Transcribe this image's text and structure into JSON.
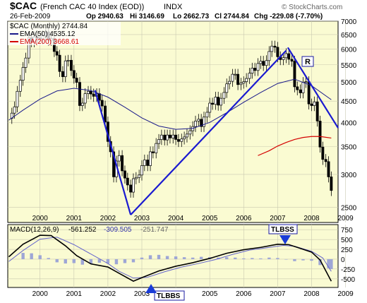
{
  "chart_data": [
    {
      "type": "candlestick",
      "symbol": "$CAC",
      "name": "(French CAC 40 Index (EOD))",
      "exchange": "INDX",
      "date": "26-Feb-2009",
      "ohlc_label": {
        "open": "Op 2940.63",
        "high": "Hi 3146.69",
        "low": "Lo 2662.73",
        "close": "Cl 2744.84",
        "change": "Chg -229.08 (-7.70%)"
      },
      "watermark": "© StockCharts.com",
      "legend": [
        {
          "label": "$CAC (Monthly) 2744.84",
          "color": "#000000"
        },
        {
          "label": "EMA(50) 4535.12",
          "color": "#1a1a8a"
        },
        {
          "label": "EMA(200) 3668.61",
          "color": "#d40000"
        }
      ],
      "ylim": [
        2300,
        7000
      ],
      "y_scale": "log",
      "y_ticks": [
        2500,
        3000,
        3500,
        4000,
        4500,
        5000,
        5500,
        6000,
        6500,
        7000
      ],
      "x_ticks": [
        "2000",
        "2001",
        "2002",
        "2003",
        "2004",
        "2005",
        "2006",
        "2007",
        "2008",
        "2009"
      ],
      "xlim": [
        1999.55,
        2009.28
      ],
      "monthly_close": [
        [
          1999.58,
          4090
        ],
        [
          1999.67,
          4210
        ],
        [
          1999.75,
          4360
        ],
        [
          1999.83,
          4750
        ],
        [
          1999.92,
          5050
        ],
        [
          2000.0,
          5420
        ],
        [
          2000.08,
          5710
        ],
        [
          2000.17,
          6390
        ],
        [
          2000.25,
          6250
        ],
        [
          2000.33,
          6420
        ],
        [
          2000.42,
          6380
        ],
        [
          2000.5,
          6350
        ],
        [
          2000.58,
          6460
        ],
        [
          2000.67,
          6600
        ],
        [
          2000.75,
          6300
        ],
        [
          2000.83,
          6360
        ],
        [
          2000.92,
          5920
        ],
        [
          2001.0,
          5800
        ],
        [
          2001.08,
          5300
        ],
        [
          2001.17,
          5150
        ],
        [
          2001.25,
          5620
        ],
        [
          2001.33,
          5640
        ],
        [
          2001.42,
          5330
        ],
        [
          2001.5,
          5110
        ],
        [
          2001.58,
          4990
        ],
        [
          2001.67,
          4390
        ],
        [
          2001.75,
          4450
        ],
        [
          2001.83,
          4690
        ],
        [
          2001.92,
          4750
        ],
        [
          2002.0,
          4680
        ],
        [
          2002.08,
          4620
        ],
        [
          2002.17,
          4690
        ],
        [
          2002.25,
          4520
        ],
        [
          2002.33,
          4380
        ],
        [
          2002.42,
          4010
        ],
        [
          2002.5,
          3600
        ],
        [
          2002.58,
          3400
        ],
        [
          2002.67,
          2960
        ],
        [
          2002.75,
          3230
        ],
        [
          2002.83,
          3330
        ],
        [
          2002.92,
          3060
        ],
        [
          2003.0,
          2940
        ],
        [
          2003.08,
          2830
        ],
        [
          2003.17,
          2720
        ],
        [
          2003.25,
          2930
        ],
        [
          2003.33,
          2950
        ],
        [
          2003.42,
          2990
        ],
        [
          2003.5,
          3150
        ],
        [
          2003.58,
          3250
        ],
        [
          2003.67,
          3150
        ],
        [
          2003.75,
          3400
        ],
        [
          2003.83,
          3380
        ],
        [
          2003.92,
          3560
        ],
        [
          2004.0,
          3640
        ],
        [
          2004.08,
          3730
        ],
        [
          2004.17,
          3630
        ],
        [
          2004.25,
          3730
        ],
        [
          2004.33,
          3670
        ],
        [
          2004.42,
          3730
        ],
        [
          2004.5,
          3640
        ],
        [
          2004.58,
          3600
        ],
        [
          2004.67,
          3650
        ],
        [
          2004.75,
          3690
        ],
        [
          2004.83,
          3750
        ],
        [
          2004.92,
          3820
        ],
        [
          2005.0,
          3910
        ],
        [
          2005.08,
          4030
        ],
        [
          2005.17,
          4070
        ],
        [
          2005.25,
          3910
        ],
        [
          2005.33,
          4120
        ],
        [
          2005.42,
          4230
        ],
        [
          2005.5,
          4450
        ],
        [
          2005.58,
          4420
        ],
        [
          2005.67,
          4600
        ],
        [
          2005.75,
          4400
        ],
        [
          2005.83,
          4570
        ],
        [
          2005.92,
          4720
        ],
        [
          2006.0,
          4950
        ],
        [
          2006.08,
          5020
        ],
        [
          2006.17,
          5220
        ],
        [
          2006.25,
          5220
        ],
        [
          2006.33,
          4930
        ],
        [
          2006.42,
          4970
        ],
        [
          2006.5,
          5010
        ],
        [
          2006.58,
          5100
        ],
        [
          2006.67,
          5250
        ],
        [
          2006.75,
          5400
        ],
        [
          2006.83,
          5330
        ],
        [
          2006.92,
          5540
        ],
        [
          2007.0,
          5610
        ],
        [
          2007.08,
          5480
        ],
        [
          2007.17,
          5630
        ],
        [
          2007.25,
          5920
        ],
        [
          2007.33,
          6100
        ],
        [
          2007.42,
          6060
        ],
        [
          2007.5,
          5750
        ],
        [
          2007.58,
          5660
        ],
        [
          2007.67,
          5720
        ],
        [
          2007.75,
          5850
        ],
        [
          2007.83,
          5670
        ],
        [
          2007.92,
          5610
        ],
        [
          2008.0,
          4870
        ],
        [
          2008.08,
          4790
        ],
        [
          2008.17,
          4710
        ],
        [
          2008.25,
          4990
        ],
        [
          2008.33,
          5010
        ],
        [
          2008.42,
          4430
        ],
        [
          2008.5,
          4390
        ],
        [
          2008.58,
          4480
        ],
        [
          2008.67,
          4030
        ],
        [
          2008.75,
          3490
        ],
        [
          2008.83,
          3260
        ],
        [
          2008.92,
          3220
        ],
        [
          2009.0,
          2960
        ],
        [
          2009.08,
          2745
        ]
      ],
      "ema50": [
        [
          1999.58,
          4050
        ],
        [
          2000.0,
          4280
        ],
        [
          2000.5,
          4550
        ],
        [
          2001.0,
          4760
        ],
        [
          2001.5,
          4830
        ],
        [
          2002.0,
          4770
        ],
        [
          2002.5,
          4600
        ],
        [
          2003.0,
          4350
        ],
        [
          2003.5,
          4100
        ],
        [
          2004.0,
          3920
        ],
        [
          2004.5,
          3850
        ],
        [
          2005.0,
          3870
        ],
        [
          2005.5,
          4000
        ],
        [
          2006.0,
          4220
        ],
        [
          2006.5,
          4470
        ],
        [
          2007.0,
          4720
        ],
        [
          2007.5,
          4960
        ],
        [
          2008.0,
          5080
        ],
        [
          2008.5,
          4900
        ],
        [
          2009.08,
          4535
        ]
      ],
      "ema200": [
        [
          2006.92,
          3330
        ],
        [
          2007.25,
          3420
        ],
        [
          2007.5,
          3510
        ],
        [
          2007.75,
          3580
        ],
        [
          2008.0,
          3640
        ],
        [
          2008.25,
          3680
        ],
        [
          2008.5,
          3700
        ],
        [
          2008.75,
          3700
        ],
        [
          2009.08,
          3669
        ]
      ],
      "trendlines": [
        {
          "from": [
            2002.12,
            4780
          ],
          "to": [
            2003.17,
            2400
          ]
        },
        {
          "from": [
            2003.17,
            2400
          ],
          "to": [
            2007.75,
            5950
          ]
        },
        {
          "from": [
            2007.8,
            6050
          ],
          "to": [
            2009.28,
            3880
          ]
        }
      ],
      "annotations": [
        {
          "text": "R",
          "at": [
            2008.0,
            5700
          ]
        }
      ]
    },
    {
      "type": "line",
      "title": "MACD(12,26,9)",
      "values_label": {
        "macd": "-561.252",
        "signal": "-309.505",
        "histogram": "-251.747"
      },
      "ylim": [
        -720,
        880
      ],
      "y_ticks": [
        750,
        500,
        250,
        0,
        -250,
        -500
      ],
      "x_ticks": [
        "2000",
        "2001",
        "2002",
        "2003",
        "2004",
        "2005",
        "2006",
        "2007",
        "2008",
        "2009"
      ],
      "series": [
        {
          "name": "MACD",
          "color": "#000000",
          "values": [
            [
              1999.58,
              60
            ],
            [
              2000.0,
              380
            ],
            [
              2000.5,
              610
            ],
            [
              2000.83,
              600
            ],
            [
              2001.25,
              340
            ],
            [
              2001.58,
              90
            ],
            [
              2002.0,
              -120
            ],
            [
              2002.5,
              -200
            ],
            [
              2002.83,
              -360
            ],
            [
              2003.25,
              -560
            ],
            [
              2003.5,
              -470
            ],
            [
              2004.0,
              -300
            ],
            [
              2004.5,
              -180
            ],
            [
              2005.0,
              -90
            ],
            [
              2005.5,
              20
            ],
            [
              2006.0,
              150
            ],
            [
              2006.5,
              240
            ],
            [
              2007.0,
              300
            ],
            [
              2007.5,
              380
            ],
            [
              2007.83,
              370
            ],
            [
              2008.08,
              300
            ],
            [
              2008.5,
              180
            ],
            [
              2008.75,
              -20
            ],
            [
              2009.08,
              -561
            ]
          ]
        },
        {
          "name": "Signal",
          "color": "#6666cc",
          "values": [
            [
              1999.58,
              -60
            ],
            [
              2000.0,
              220
            ],
            [
              2000.5,
              510
            ],
            [
              2001.0,
              560
            ],
            [
              2001.5,
              370
            ],
            [
              2002.0,
              130
            ],
            [
              2002.5,
              -110
            ],
            [
              2002.83,
              -310
            ],
            [
              2003.25,
              -480
            ],
            [
              2003.67,
              -460
            ],
            [
              2004.17,
              -320
            ],
            [
              2004.67,
              -200
            ],
            [
              2005.17,
              -110
            ],
            [
              2005.67,
              -10
            ],
            [
              2006.17,
              120
            ],
            [
              2006.67,
              230
            ],
            [
              2007.17,
              290
            ],
            [
              2007.67,
              350
            ],
            [
              2008.0,
              330
            ],
            [
              2008.5,
              200
            ],
            [
              2008.83,
              30
            ],
            [
              2009.08,
              -310
            ]
          ]
        },
        {
          "name": "Histogram",
          "color": "#9ea6d6",
          "values": [
            [
              2000.0,
              160
            ],
            [
              2000.25,
              150
            ],
            [
              2000.5,
              100
            ],
            [
              2000.75,
              30
            ],
            [
              2001.0,
              -80
            ],
            [
              2001.25,
              -110
            ],
            [
              2001.5,
              -100
            ],
            [
              2001.75,
              -140
            ],
            [
              2002.0,
              -120
            ],
            [
              2002.25,
              -90
            ],
            [
              2002.5,
              -110
            ],
            [
              2002.75,
              -130
            ],
            [
              2003.0,
              -100
            ],
            [
              2003.25,
              -80
            ],
            [
              2003.5,
              40
            ],
            [
              2003.75,
              100
            ],
            [
              2004.0,
              110
            ],
            [
              2004.25,
              80
            ],
            [
              2004.5,
              70
            ],
            [
              2004.75,
              50
            ],
            [
              2005.0,
              40
            ],
            [
              2005.25,
              60
            ],
            [
              2005.5,
              50
            ],
            [
              2005.75,
              40
            ],
            [
              2006.0,
              50
            ],
            [
              2006.25,
              40
            ],
            [
              2006.5,
              20
            ],
            [
              2006.75,
              30
            ],
            [
              2007.0,
              20
            ],
            [
              2007.25,
              40
            ],
            [
              2007.5,
              30
            ],
            [
              2007.75,
              -10
            ],
            [
              2008.0,
              -50
            ],
            [
              2008.25,
              -30
            ],
            [
              2008.5,
              -40
            ],
            [
              2008.75,
              -150
            ],
            [
              2009.0,
              -230
            ],
            [
              2009.08,
              -252
            ]
          ]
        }
      ],
      "annotations": [
        {
          "text": "TLBSS",
          "at": [
            2007.67,
            400
          ]
        },
        {
          "text": "TLBBS",
          "at": [
            2003.25,
            -560
          ]
        }
      ]
    }
  ]
}
